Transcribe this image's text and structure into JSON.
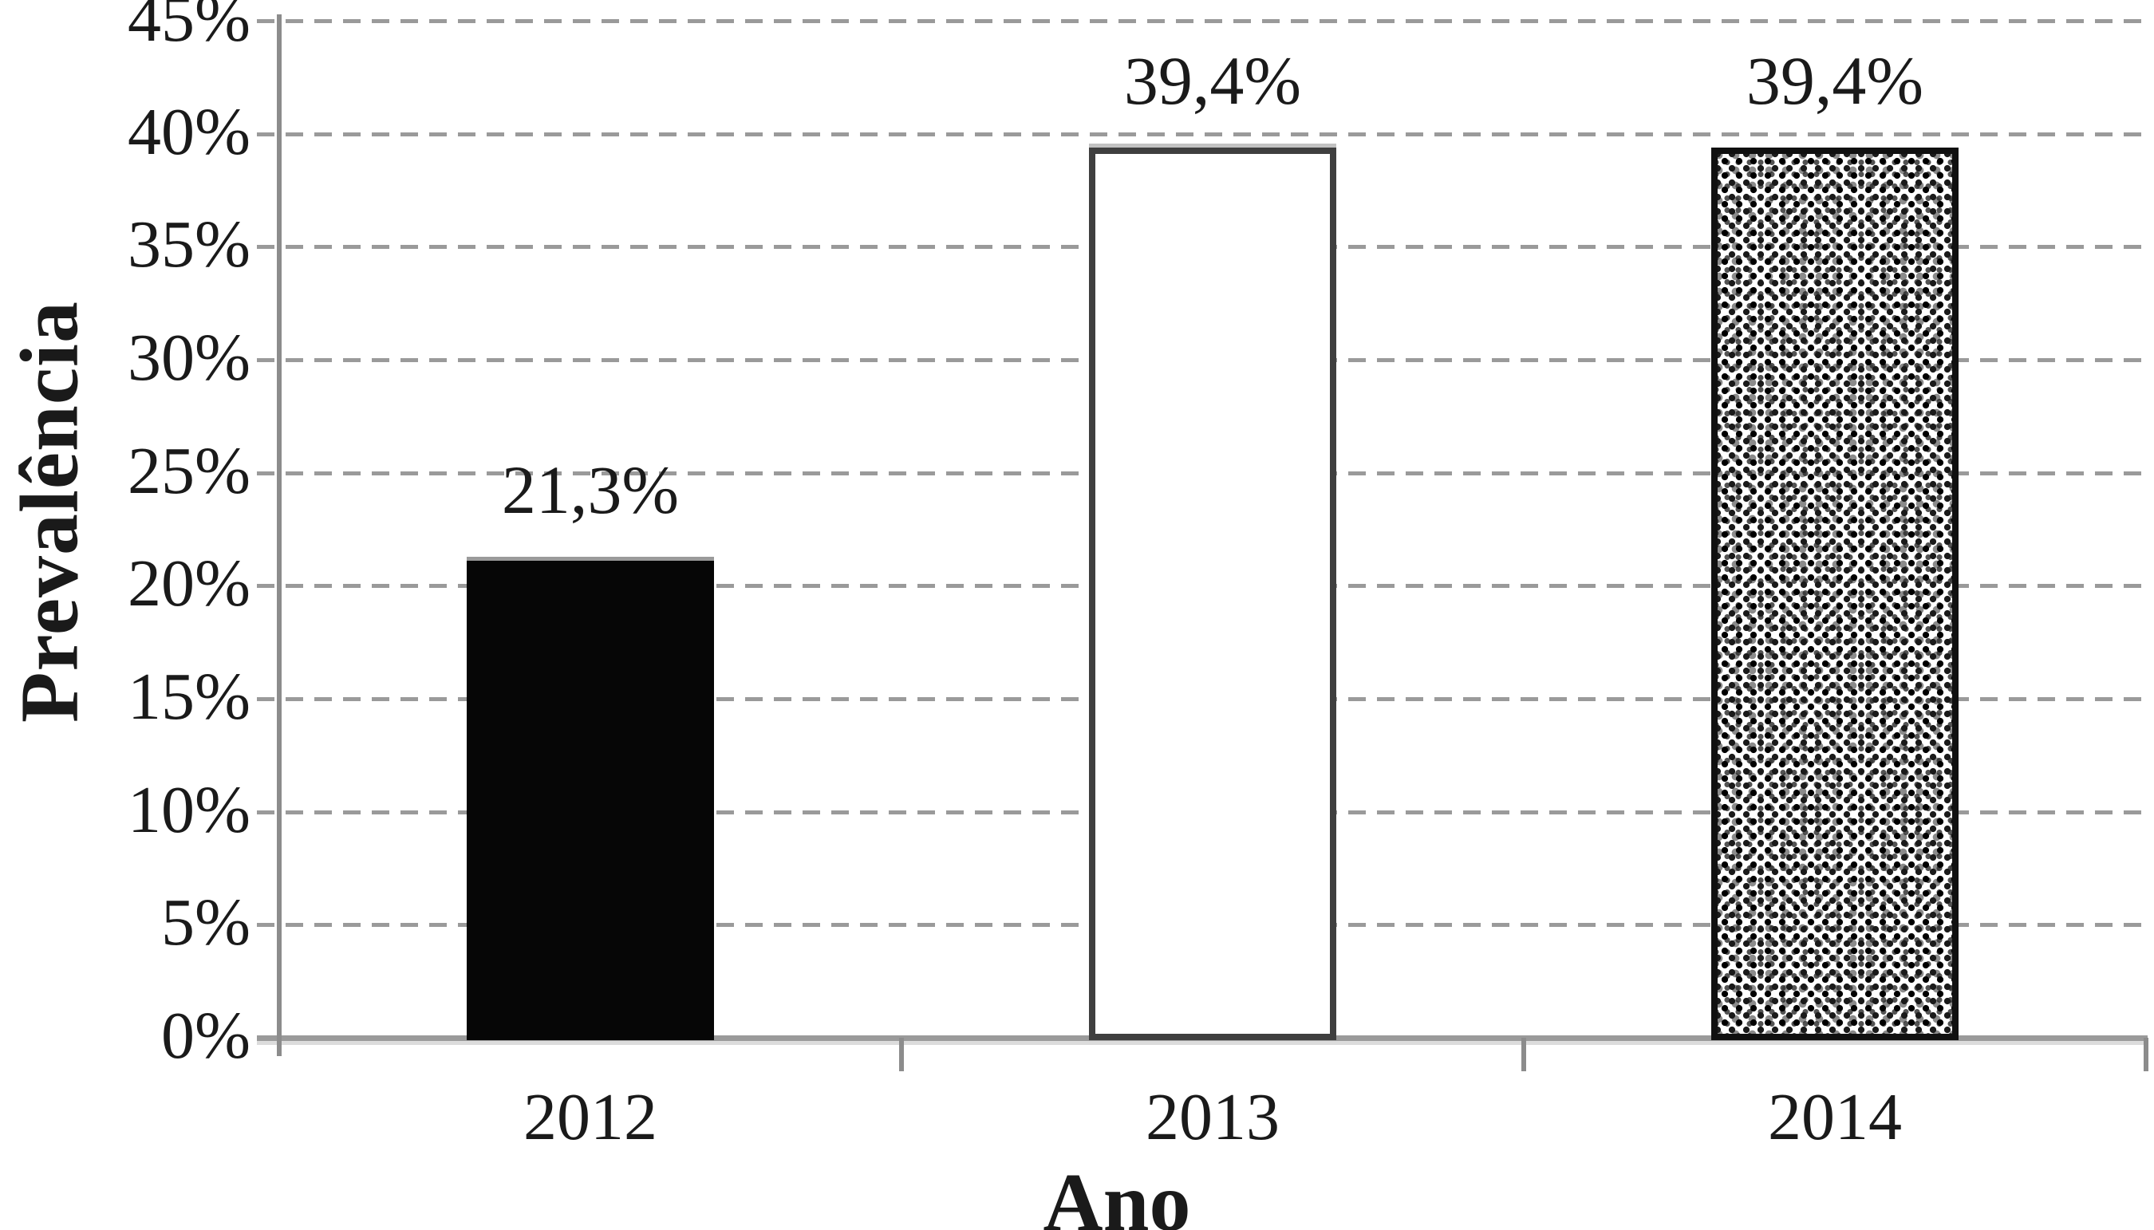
{
  "chart_data": {
    "type": "bar",
    "title": "",
    "xlabel": "Ano",
    "ylabel": "Prevalência",
    "categories": [
      "2012",
      "2013",
      "2014"
    ],
    "values": [
      21.3,
      39.4,
      39.4
    ],
    "value_labels": [
      "21,3%",
      "39,4%",
      "39,4%"
    ],
    "fills": [
      "solid-black",
      "white-outline",
      "stipple"
    ],
    "ylim": [
      0,
      45
    ],
    "ytick_step": 5,
    "ytick_labels": [
      "0%",
      "5%",
      "10%",
      "15%",
      "20%",
      "25%",
      "30%",
      "35%",
      "40%",
      "45%"
    ],
    "grid": "dashed-horizontal-gridlines",
    "legend": "none",
    "decimal_separator": ",",
    "colors": {
      "background": "#ffffff",
      "bar_2012_fill": "#060606",
      "bar_2013_fill": "#ffffff",
      "bar_2013_outline": "#3f3f3f",
      "bar_2014_pattern": "black-stipple-dots-on-white",
      "bar_2014_outline": "#101010",
      "gridline": "#9a9a9a",
      "axis": "#8c8c8c",
      "text": "#1a1a1a"
    }
  }
}
